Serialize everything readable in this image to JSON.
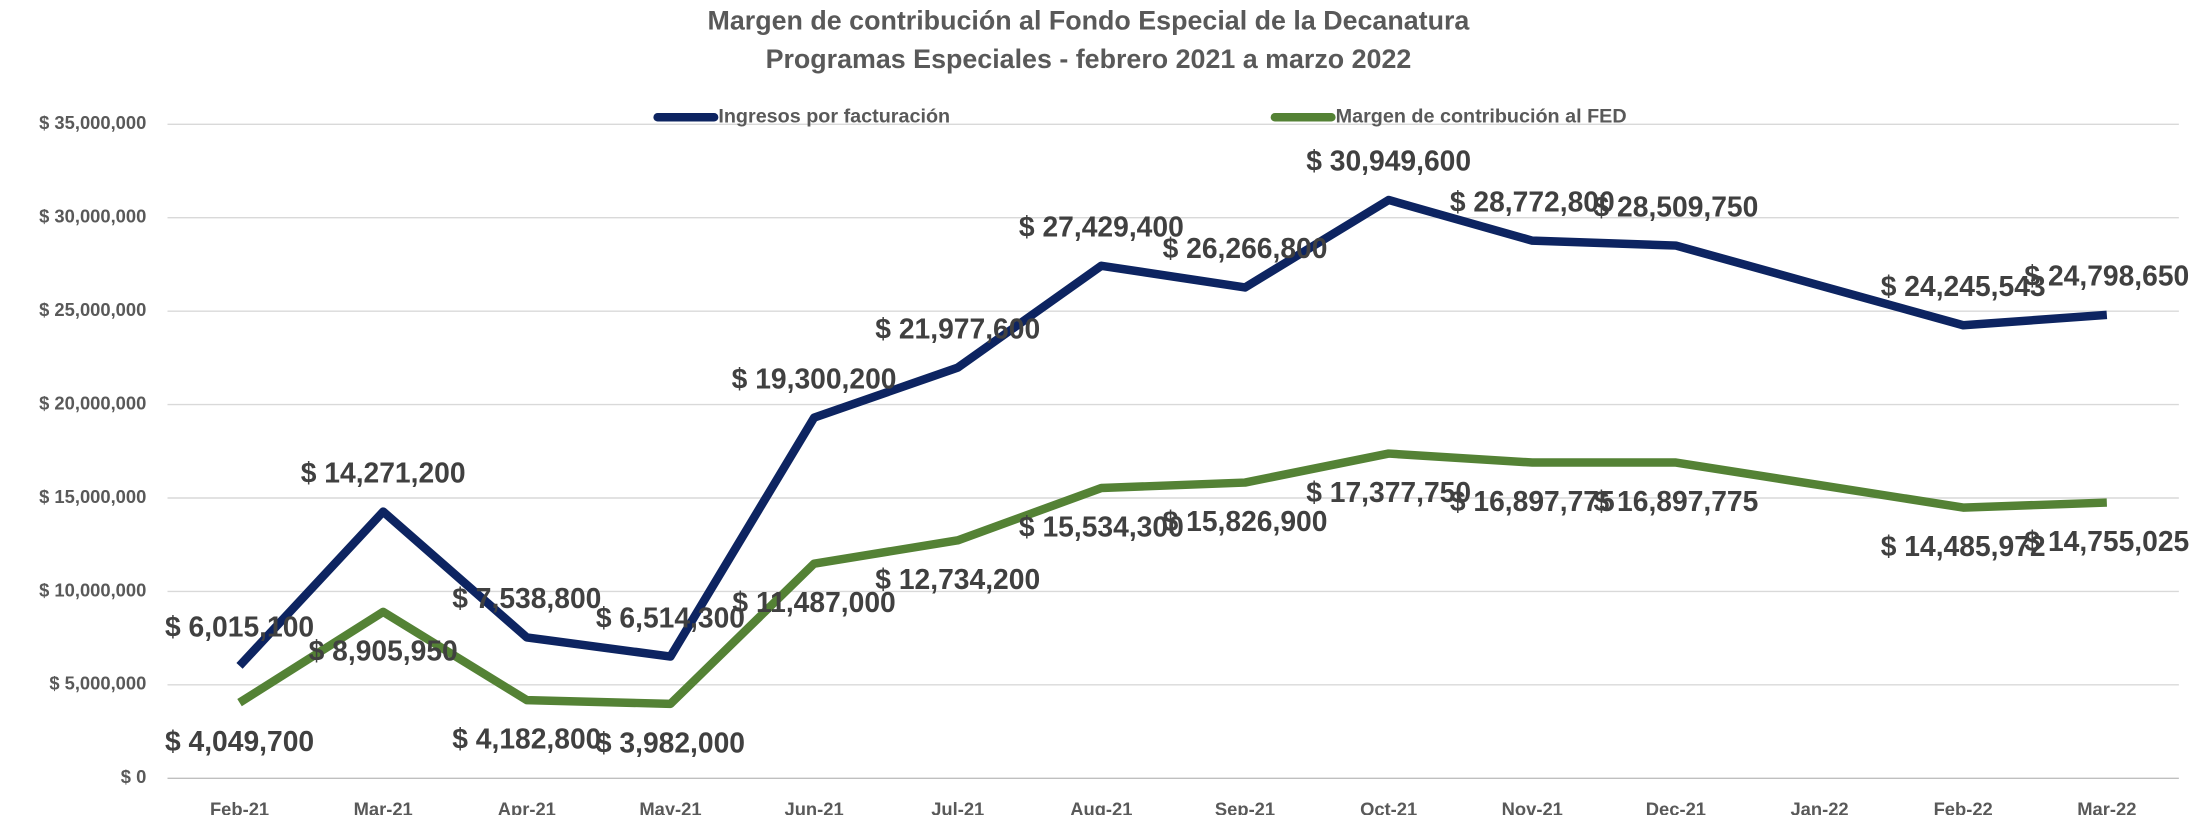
{
  "chart_data": {
    "type": "line",
    "title": "Margen de contribución al Fondo Especial de la Decanatura",
    "subtitle": "Programas Especiales - febrero 2021 a marzo 2022",
    "categories": [
      "Feb-21",
      "Mar-21",
      "Apr-21",
      "May-21",
      "Jun-21",
      "Jul-21",
      "Aug-21",
      "Sep-21",
      "Oct-21",
      "Nov-21",
      "Dec-21",
      "Jan-22",
      "Feb-22",
      "Mar-22"
    ],
    "series": [
      {
        "name": "Ingresos por facturación",
        "color": "#0d2461",
        "values": [
          6015100,
          14271200,
          7538800,
          6514300,
          19300200,
          21977600,
          27429400,
          26266800,
          30949600,
          28772800,
          28509750,
          26377646,
          24245543,
          24798650
        ],
        "value_labels": [
          "$ 6,015,100",
          "$ 14,271,200",
          "$ 7,538,800",
          "$ 6,514,300",
          "$ 19,300,200",
          "$ 21,977,600",
          "$ 27,429,400",
          "$ 26,266,800",
          "$ 30,949,600",
          "$ 28,772,800",
          "$ 28,509,750",
          null,
          "$ 24,245,543",
          "$ 24,798,650"
        ]
      },
      {
        "name": "Margen de contribución al FED",
        "color": "#548235",
        "values": [
          4049700,
          8905950,
          4182800,
          3982000,
          11487000,
          12734200,
          15534300,
          15826900,
          17377750,
          16897775,
          16897775,
          15691874,
          14485972,
          14755025
        ],
        "value_labels": [
          "$ 4,049,700",
          "$ 8,905,950",
          "$ 4,182,800",
          "$ 3,982,000",
          "$ 11,487,000",
          "$ 12,734,200",
          "$ 15,534,300",
          "$ 15,826,900",
          "$ 17,377,750",
          "$ 16,897,775",
          "$ 16,897,775",
          null,
          "$ 14,485,972",
          "$ 14,755,025"
        ]
      }
    ],
    "ylim": [
      0,
      35000000
    ],
    "yticks": [
      {
        "value": 0,
        "label": "$ 0"
      },
      {
        "value": 5000000,
        "label": "$ 5,000,000"
      },
      {
        "value": 10000000,
        "label": "$ 10,000,000"
      },
      {
        "value": 15000000,
        "label": "$ 15,000,000"
      },
      {
        "value": 20000000,
        "label": "$ 20,000,000"
      },
      {
        "value": 25000000,
        "label": "$ 25,000,000"
      },
      {
        "value": 30000000,
        "label": "$ 30,000,000"
      },
      {
        "value": 35000000,
        "label": "$ 35,000,000"
      }
    ],
    "grid": true,
    "legend": "top"
  }
}
